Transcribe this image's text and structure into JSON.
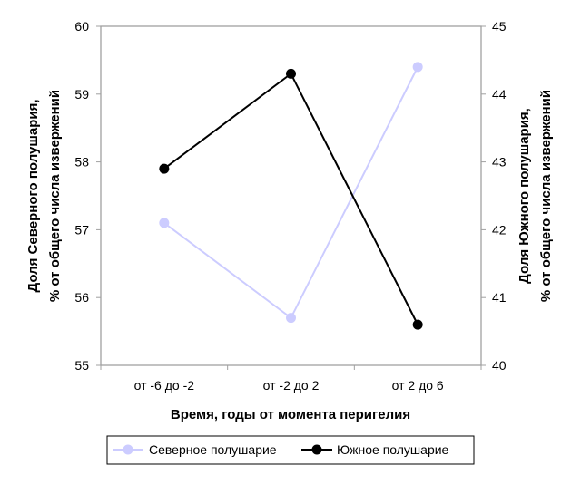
{
  "chart_data": {
    "type": "line",
    "categories": [
      "от -6 до -2",
      "от -2 до 2",
      "от 2 до 6"
    ],
    "xlabel": "Время, годы от момента перигелия",
    "ylabel_left": [
      "Доля Северного полушария,",
      "% от общего числа извержений"
    ],
    "ylabel_right": [
      "Доля Южного полушария,",
      "% от общего числа извержений"
    ],
    "ylim_left": [
      55,
      60
    ],
    "ylim_right": [
      40,
      45
    ],
    "yticks_left": [
      "55",
      "56",
      "57",
      "58",
      "59",
      "60"
    ],
    "yticks_right": [
      "40",
      "41",
      "42",
      "43",
      "44",
      "45"
    ],
    "legend_position": "bottom",
    "series": [
      {
        "name": "Северное полушарие",
        "axis": "left",
        "values": [
          57.1,
          55.7,
          59.4
        ],
        "color": "#ccccff"
      },
      {
        "name": "Южное полушарие",
        "axis": "right",
        "values": [
          42.9,
          44.3,
          40.6
        ],
        "color": "#000000"
      }
    ]
  }
}
